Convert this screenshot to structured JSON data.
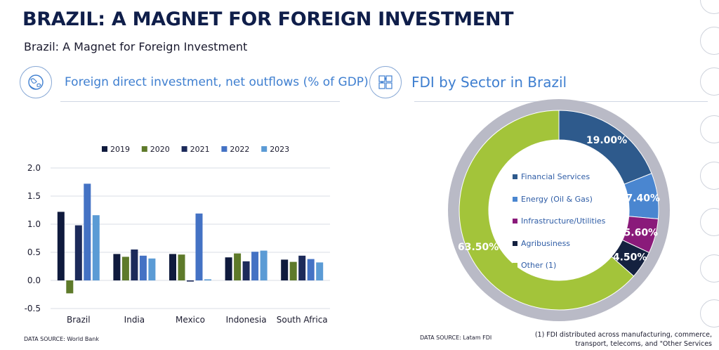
{
  "header": {
    "title": "BRAZIL: A MAGNET FOR FOREIGN INVESTMENT",
    "subtitle": "Brazil: A Magnet for Foreign Investment"
  },
  "left_section": {
    "title": "Foreign direct investment, net outflows (% of GDP)",
    "icon": "globe-icon",
    "source": "DATA SOURCE: World Bank"
  },
  "right_section": {
    "title": "FDI by Sector in Brazil",
    "icon": "puzzle-icon",
    "source": "DATA SOURCE: Latam FDI",
    "footnote": "(1) FDI distributed across manufacturing, commerce, transport, telecoms, and \"Other Services"
  },
  "chart_data": [
    {
      "type": "bar",
      "categories": [
        "Brazil",
        "India",
        "Mexico",
        "Indonesia",
        "South Africa"
      ],
      "series": [
        {
          "name": "2019",
          "color": "#0f1a3d",
          "values": [
            1.22,
            0.47,
            0.47,
            0.41,
            0.37
          ]
        },
        {
          "name": "2020",
          "color": "#5e7a2a",
          "values": [
            -0.23,
            0.42,
            0.46,
            0.48,
            0.33
          ]
        },
        {
          "name": "2021",
          "color": "#1c2a5a",
          "values": [
            0.98,
            0.55,
            -0.02,
            0.34,
            0.44
          ]
        },
        {
          "name": "2022",
          "color": "#4472c4",
          "values": [
            1.72,
            0.44,
            1.19,
            0.51,
            0.38
          ]
        },
        {
          "name": "2023",
          "color": "#5b9bd5",
          "values": [
            1.16,
            0.39,
            0.02,
            0.53,
            0.32
          ]
        }
      ],
      "ylim": [
        -0.5,
        2.0
      ],
      "yticks": [
        "2.0",
        "1.5",
        "1.0",
        "0.5",
        "0.0",
        "-0.5"
      ],
      "ytick_values": [
        2.0,
        1.5,
        1.0,
        0.5,
        0.0,
        -0.5
      ],
      "grid": true,
      "legend": "top"
    },
    {
      "type": "pie",
      "donut": true,
      "slices": [
        {
          "label": "Financial Services",
          "value": 19.0,
          "display": "19.00%",
          "color": "#2e5a8c"
        },
        {
          "label": "Energy (Oil & Gas)",
          "value": 7.4,
          "display": "7.40%",
          "color": "#4a86d0"
        },
        {
          "label": "Infrastructure/Utilities",
          "value": 5.6,
          "display": "5.60%",
          "color": "#8a1a7a"
        },
        {
          "label": "Agribusiness",
          "value": 4.5,
          "display": "4.50%",
          "color": "#14213f"
        },
        {
          "label": "Other (1)",
          "value": 63.5,
          "display": "63.50%",
          "color": "#a3c43a"
        }
      ],
      "legend": "center"
    }
  ]
}
